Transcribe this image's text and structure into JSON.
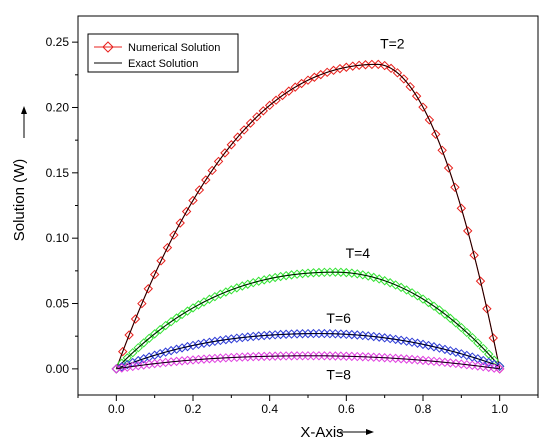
{
  "chart_data": {
    "type": "line",
    "xlabel": "X-Axis",
    "ylabel": "Solution (W)",
    "xlim": [
      -0.1,
      1.1
    ],
    "ylim": [
      -0.02,
      0.27
    ],
    "xticks": [
      "0.0",
      "0.2",
      "0.4",
      "0.6",
      "0.8",
      "1.0"
    ],
    "yticks": [
      "0.00",
      "0.05",
      "0.10",
      "0.15",
      "0.20",
      "0.25"
    ],
    "legend": {
      "placement": "top-left",
      "entries": [
        {
          "label": "Numerical Solution",
          "marker": "diamond-line"
        },
        {
          "label": "Exact Solution",
          "marker": "line"
        }
      ]
    },
    "curves": [
      {
        "name": "T=2",
        "peak_x": 0.68,
        "peak_y": 0.233,
        "end_y": 0.0,
        "color": "#e8201c",
        "points": 61
      },
      {
        "name": "T=4",
        "peak_x": 0.57,
        "peak_y": 0.074,
        "end_y": 0.002,
        "color": "#34e334",
        "points": 71
      },
      {
        "name": "T=6",
        "peak_x": 0.53,
        "peak_y": 0.027,
        "end_y": 0.002,
        "color": "#2e3cd6",
        "points": 71
      },
      {
        "name": "T=8",
        "peak_x": 0.51,
        "peak_y": 0.01,
        "end_y": 0.0,
        "color": "#e040e0",
        "points": 71
      }
    ],
    "annotations": [
      {
        "text": "T=2",
        "x": 0.72,
        "y": 0.245
      },
      {
        "text": "T=4",
        "x": 0.63,
        "y": 0.085
      },
      {
        "text": "T=6",
        "x": 0.58,
        "y": 0.035
      },
      {
        "text": "T=8",
        "x": 0.58,
        "y": -0.008
      }
    ],
    "exact_color": "#000000"
  }
}
